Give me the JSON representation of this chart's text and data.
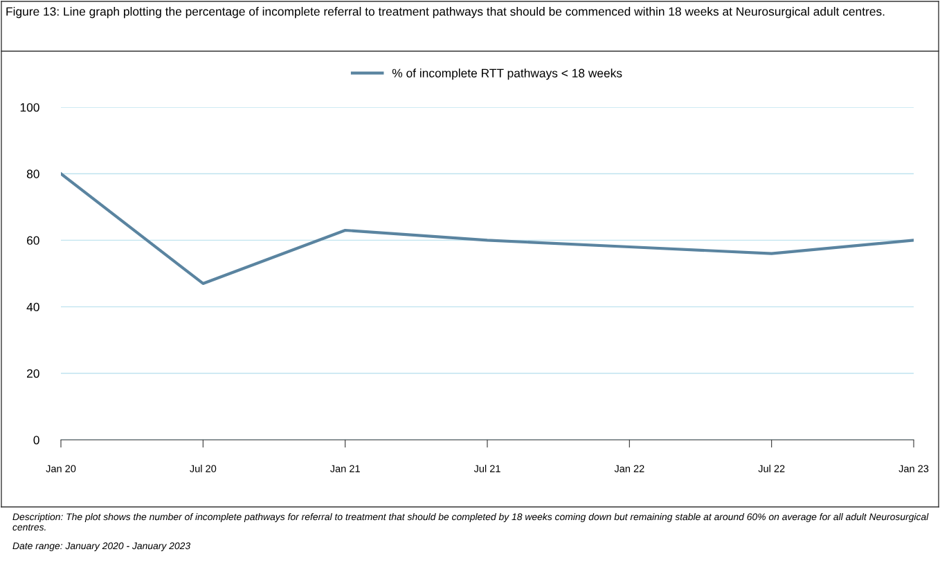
{
  "chart_data": {
    "type": "line",
    "title": "Figure 13: Line graph plotting the percentage of incomplete referral to treatment pathways that should be commenced within 18 weeks at Neurosurgical adult centres.",
    "categories": [
      "Jan 20",
      "Jul 20",
      "Jan 21",
      "Jul 21",
      "Jan 22",
      "Jul 22",
      "Jan 23"
    ],
    "series": [
      {
        "name": "% of incomplete RTT pathways < 18 weeks",
        "color": "#5a84a0",
        "values": [
          80,
          47,
          63,
          60,
          58,
          56,
          60
        ]
      }
    ],
    "ylim": [
      0,
      100
    ],
    "yticks": [
      0,
      20,
      40,
      60,
      80,
      100
    ],
    "grid": "y",
    "legend": "top",
    "marker": "none",
    "line_style": "solid",
    "annotations": [
      "Description: The plot shows the number of incomplete pathways for referral to treatment that should be completed by 18 weeks coming down but remaining stable at around 60% on average for all adult Neurosurgical centres.",
      "Date range: January 2020 - January 2023"
    ]
  }
}
